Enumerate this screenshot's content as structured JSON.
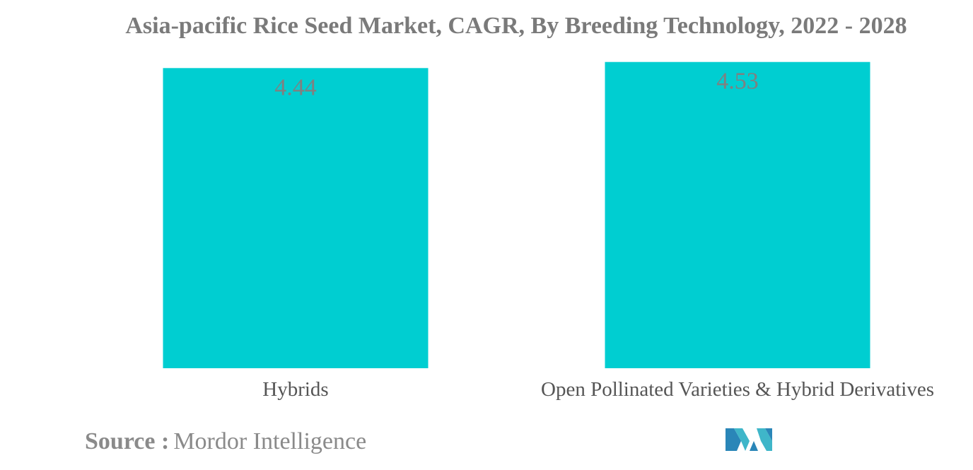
{
  "chart_data": {
    "type": "bar",
    "title": "Asia-pacific Rice Seed Market, CAGR, By Breeding Technology, 2022 - 2028",
    "categories": [
      "Hybrids",
      "Open Pollinated Varieties & Hybrid Derivatives"
    ],
    "values": [
      4.44,
      4.53
    ],
    "value_labels": [
      "4.44",
      "4.53"
    ],
    "xlabel": "",
    "ylabel": "",
    "ylim": [
      0,
      4.6
    ],
    "grid": false,
    "legend": "none",
    "bar_color": "#00ced1",
    "value_label_color": "#808080"
  },
  "source": {
    "label": "Source :",
    "value": "Mordor Intelligence"
  },
  "logo": {
    "icon": "mordor-intelligence-logo-icon",
    "colors": [
      "#2a86b8",
      "#3fb6c9"
    ]
  }
}
